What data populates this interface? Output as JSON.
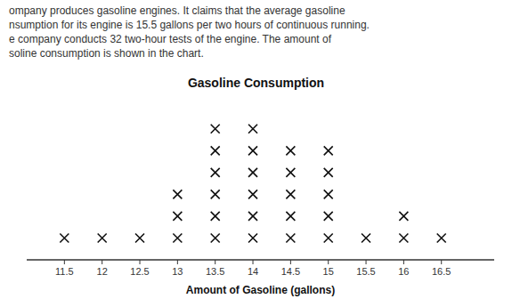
{
  "chart_data": {
    "type": "dotplot",
    "title": "Gasoline Consumption",
    "x_label": "Amount of Gasoline (gallons)",
    "annotations": [
      "ompany produces gasoline engines. It claims that the average gasoline",
      "nsumption for its engine is 15.5 gallons per two hours of continuous running.",
      "e company conducts 32 two-hour tests of the engine. The amount of",
      "soline consumption is shown in the chart."
    ],
    "x": [
      11.5,
      12.0,
      12.5,
      13.0,
      13.5,
      14.0,
      14.5,
      15.0,
      15.5,
      16.0,
      16.5
    ],
    "values": [
      1,
      1,
      1,
      3,
      6,
      6,
      5,
      5,
      1,
      2,
      1
    ],
    "marker": "x",
    "color": "#111111",
    "xlim": [
      11.0,
      17.2
    ],
    "xticks": [
      11.5,
      12,
      12.5,
      13,
      13.5,
      14,
      14.5,
      15,
      15.5,
      16,
      16.5
    ],
    "ylim": [
      0,
      7.5
    ],
    "tick_labels": "x",
    "grid": false
  }
}
